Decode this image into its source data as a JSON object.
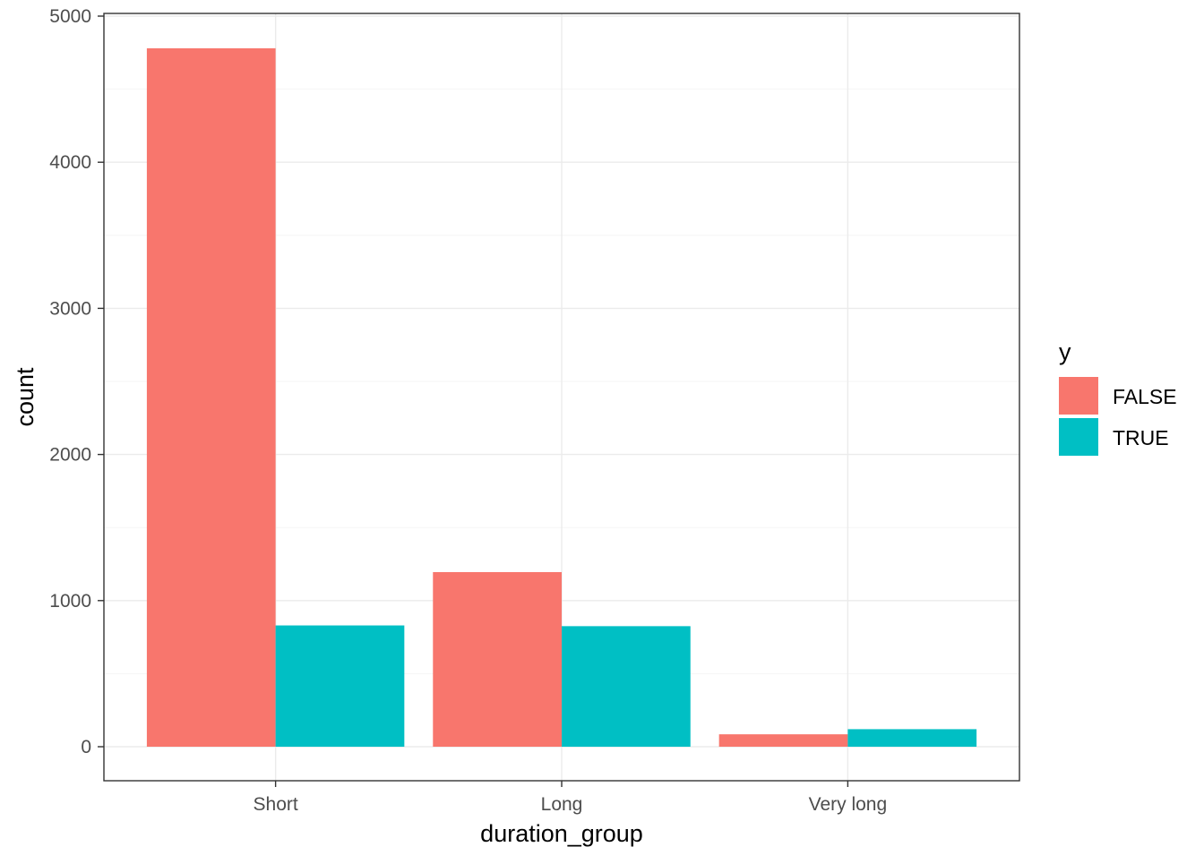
{
  "chart_data": {
    "type": "bar",
    "title": "",
    "xlabel": "duration_group",
    "ylabel": "count",
    "categories": [
      "Short",
      "Long",
      "Very long"
    ],
    "series": [
      {
        "name": "FALSE",
        "color": "#F8766D",
        "values": [
          4780,
          1195,
          85
        ]
      },
      {
        "name": "TRUE",
        "color": "#00BFC4",
        "values": [
          830,
          825,
          120
        ]
      }
    ],
    "ylim": [
      0,
      5000
    ],
    "yticks": [
      0,
      1000,
      2000,
      3000,
      4000,
      5000
    ],
    "grid": true,
    "legend": {
      "title": "y",
      "position": "right"
    }
  }
}
